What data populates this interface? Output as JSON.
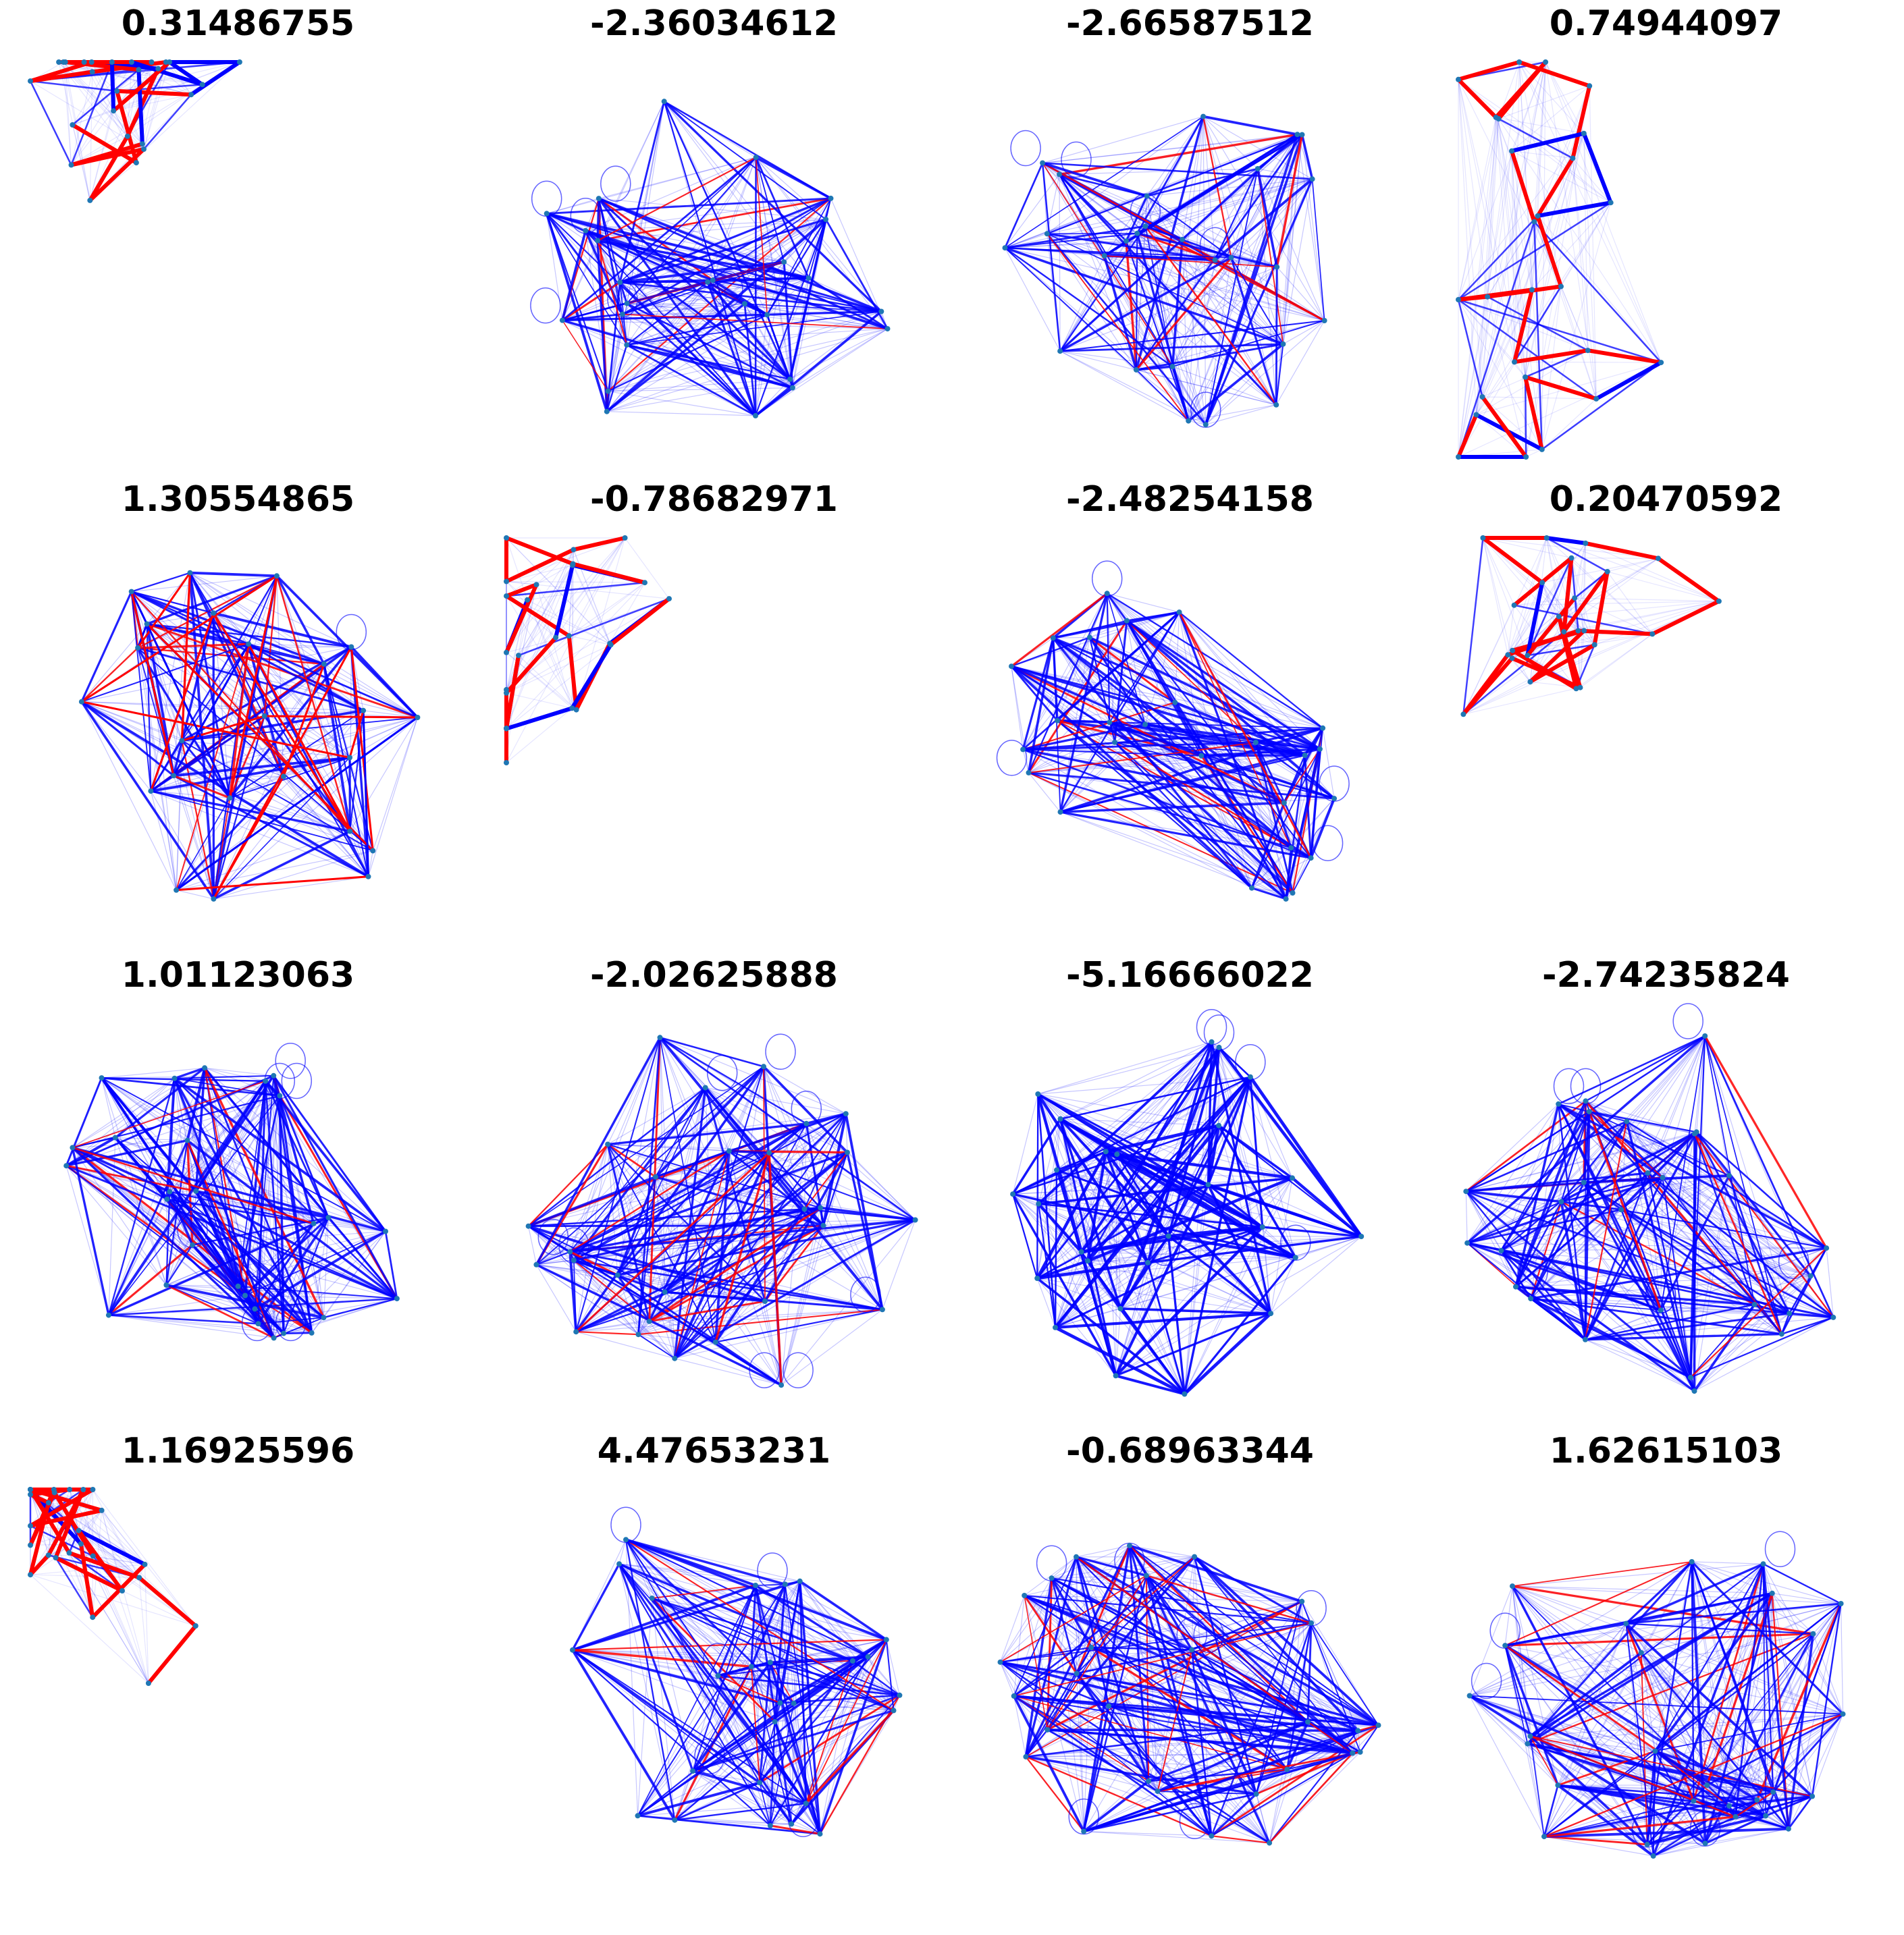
{
  "panels": [
    {
      "title": "0.31486755",
      "kind": "chain",
      "seed": 11,
      "nodes": 26,
      "loops": 0
    },
    {
      "title": "-2.36034612",
      "kind": "dense",
      "seed": 12,
      "nodes": 26,
      "loops": 6
    },
    {
      "title": "-2.66587512",
      "kind": "dense",
      "seed": 13,
      "nodes": 26,
      "loops": 5
    },
    {
      "title": "0.74944097",
      "kind": "chain",
      "seed": 14,
      "nodes": 26,
      "loops": 0
    },
    {
      "title": "1.30554865",
      "kind": "mixed",
      "seed": 15,
      "nodes": 24,
      "loops": 1
    },
    {
      "title": "-0.78682971",
      "kind": "chain",
      "seed": 16,
      "nodes": 24,
      "loops": 0
    },
    {
      "title": "-2.48254158",
      "kind": "dense",
      "seed": 17,
      "nodes": 26,
      "loops": 5
    },
    {
      "title": "0.20470592",
      "kind": "chain",
      "seed": 18,
      "nodes": 24,
      "loops": 0
    },
    {
      "title": "1.01123063",
      "kind": "dense",
      "seed": 19,
      "nodes": 28,
      "loops": 7
    },
    {
      "title": "-2.02625888",
      "kind": "dense",
      "seed": 20,
      "nodes": 28,
      "loops": 8
    },
    {
      "title": "-5.16666022",
      "kind": "blue",
      "seed": 21,
      "nodes": 26,
      "loops": 5
    },
    {
      "title": "-2.74235824",
      "kind": "dense",
      "seed": 22,
      "nodes": 28,
      "loops": 7
    },
    {
      "title": "1.16925596",
      "kind": "chain",
      "seed": 23,
      "nodes": 26,
      "loops": 0
    },
    {
      "title": "4.47653231",
      "kind": "dense",
      "seed": 24,
      "nodes": 26,
      "loops": 6
    },
    {
      "title": "-0.68963344",
      "kind": "dense",
      "seed": 25,
      "nodes": 28,
      "loops": 7
    },
    {
      "title": "1.62615103",
      "kind": "dense",
      "seed": 26,
      "nodes": 28,
      "loops": 6
    }
  ],
  "colors": {
    "positive_edge": "#ff0000",
    "negative_edge": "#0000ff",
    "node": "#1f77b4"
  }
}
